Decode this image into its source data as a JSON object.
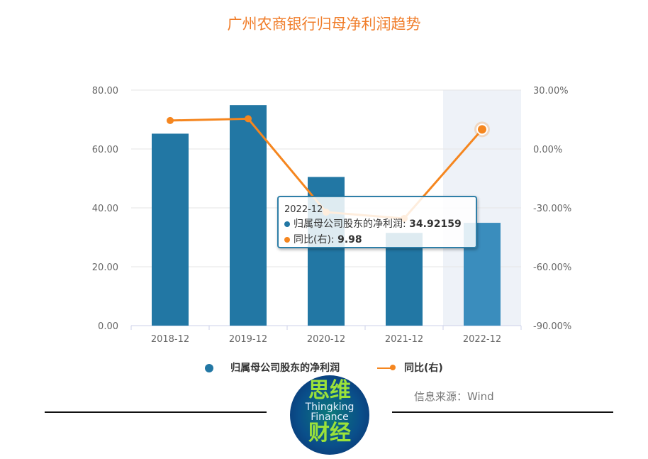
{
  "title": "广州农商银行归母净利润趋势",
  "chart_data": {
    "type": "bar+line",
    "categories": [
      "2018-12",
      "2019-12",
      "2020-12",
      "2021-12",
      "2022-12"
    ],
    "series": [
      {
        "name": "归属母公司股东的净利润",
        "type": "bar",
        "axis": "left",
        "color": "#2277a4",
        "values": [
          65.2,
          74.9,
          50.5,
          31.5,
          34.92159
        ]
      },
      {
        "name": "同比(右)",
        "type": "line",
        "axis": "right",
        "color": "#f5861f",
        "values": [
          14.5,
          15.4,
          -32.2,
          -35.4,
          9.98
        ]
      }
    ],
    "y_left": {
      "ticks": [
        "0.00",
        "20.00",
        "40.00",
        "60.00",
        "80.00"
      ],
      "range": [
        0,
        80
      ]
    },
    "y_right": {
      "ticks": [
        "-90.00%",
        "-60.00%",
        "-30.00%",
        "0.00%",
        "30.00%"
      ],
      "range": [
        -90,
        30
      ]
    },
    "highlighted_category": "2022-12",
    "legend_position": "bottom",
    "tooltip": {
      "category": "2022-12",
      "bar_label": "归属母公司股东的净利润: ",
      "bar_value": "34.92159",
      "line_label": "同比(右): ",
      "line_value": "9.98"
    }
  },
  "source": "信息来源：Wind",
  "logo": {
    "cn_top": "思维",
    "en1": "Thingking",
    "en2": "Finance",
    "cn_bottom": "财经"
  }
}
